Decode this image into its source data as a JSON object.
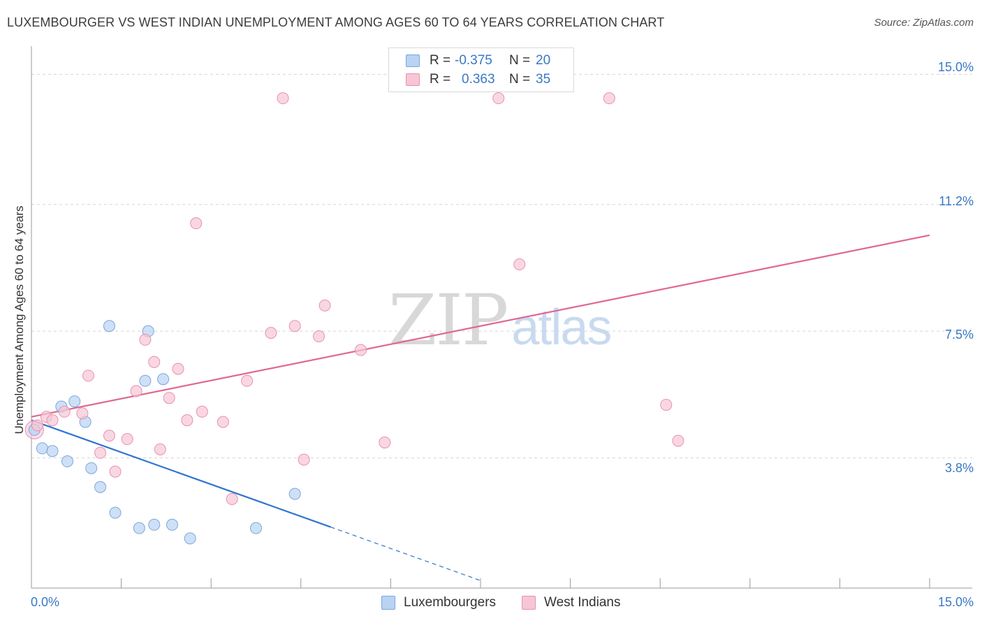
{
  "header": {
    "title": "LUXEMBOURGER VS WEST INDIAN UNEMPLOYMENT AMONG AGES 60 TO 64 YEARS CORRELATION CHART",
    "source": "Source: ZipAtlas.com"
  },
  "watermark": {
    "zip": "ZIP",
    "atlas": "atlas"
  },
  "legend": {
    "rows": [
      {
        "r_label": "R =",
        "r_value": "-0.375",
        "n_label": "N =",
        "n_value": "20"
      },
      {
        "r_label": "R =",
        "r_value": "0.363",
        "n_label": "N =",
        "n_value": "35"
      }
    ]
  },
  "colors": {
    "blue_fill": "#b9d3f3",
    "blue_stroke": "#7aa6dc",
    "blue_line": "#2f74d0",
    "pink_fill": "#f7c6d5",
    "pink_stroke": "#e891ad",
    "pink_line": "#e06792",
    "tick_text": "#3a78c4",
    "grid": "#d5d5d5"
  },
  "chart_data": {
    "type": "scatter",
    "title": "LUXEMBOURGER VS WEST INDIAN UNEMPLOYMENT AMONG AGES 60 TO 64 YEARS CORRELATION CHART",
    "xlabel": "",
    "ylabel": "Unemployment Among Ages 60 to 64 years",
    "xlim": [
      0,
      15
    ],
    "ylim": [
      0,
      15.7
    ],
    "x_tick_labels": [
      "0.0%",
      "15.0%"
    ],
    "y_ticks": [
      3.8,
      7.5,
      11.2,
      15.0
    ],
    "y_tick_labels": [
      "3.8%",
      "7.5%",
      "11.2%",
      "15.0%"
    ],
    "legend_position": "top-center",
    "series": [
      {
        "name": "Luxembourgers",
        "color": "blue",
        "r": -0.375,
        "n": 20,
        "points": [
          [
            0.05,
            4.62
          ],
          [
            0.18,
            4.08
          ],
          [
            0.35,
            4.0
          ],
          [
            0.5,
            5.3
          ],
          [
            0.6,
            3.7
          ],
          [
            0.72,
            5.45
          ],
          [
            0.9,
            4.85
          ],
          [
            1.0,
            3.5
          ],
          [
            1.15,
            2.95
          ],
          [
            1.3,
            7.65
          ],
          [
            1.4,
            2.2
          ],
          [
            1.8,
            1.75
          ],
          [
            1.9,
            6.05
          ],
          [
            1.95,
            7.5
          ],
          [
            2.05,
            1.85
          ],
          [
            2.2,
            6.1
          ],
          [
            2.35,
            1.85
          ],
          [
            2.65,
            1.45
          ],
          [
            3.75,
            1.75
          ],
          [
            4.4,
            2.75
          ]
        ],
        "trend": {
          "x0": 0.0,
          "y0": 4.9,
          "x1": 5.0,
          "y1": 1.78,
          "dashed_to_x": 7.5,
          "dashed_to_y": 0.22
        }
      },
      {
        "name": "West Indians",
        "color": "pink",
        "r": 0.363,
        "n": 35,
        "points": [
          [
            0.1,
            4.75
          ],
          [
            0.25,
            5.0
          ],
          [
            0.35,
            4.9
          ],
          [
            0.55,
            5.15
          ],
          [
            0.85,
            5.1
          ],
          [
            0.95,
            6.2
          ],
          [
            1.15,
            3.95
          ],
          [
            1.3,
            4.45
          ],
          [
            1.4,
            3.4
          ],
          [
            1.6,
            4.35
          ],
          [
            1.75,
            5.75
          ],
          [
            1.9,
            7.25
          ],
          [
            2.05,
            6.6
          ],
          [
            2.15,
            4.05
          ],
          [
            2.3,
            5.55
          ],
          [
            2.45,
            6.4
          ],
          [
            2.6,
            4.9
          ],
          [
            2.75,
            10.65
          ],
          [
            2.85,
            5.15
          ],
          [
            3.2,
            4.85
          ],
          [
            3.35,
            2.6
          ],
          [
            3.6,
            6.05
          ],
          [
            4.0,
            7.45
          ],
          [
            4.2,
            14.3
          ],
          [
            4.4,
            7.65
          ],
          [
            4.55,
            3.75
          ],
          [
            4.8,
            7.35
          ],
          [
            4.9,
            8.25
          ],
          [
            5.5,
            6.95
          ],
          [
            5.9,
            4.25
          ],
          [
            7.8,
            14.3
          ],
          [
            8.15,
            9.45
          ],
          [
            9.65,
            14.3
          ],
          [
            10.6,
            5.35
          ],
          [
            10.8,
            4.3
          ]
        ],
        "trend": {
          "x0": 0.0,
          "y0": 5.0,
          "x1": 15.0,
          "y1": 10.3
        }
      }
    ]
  }
}
